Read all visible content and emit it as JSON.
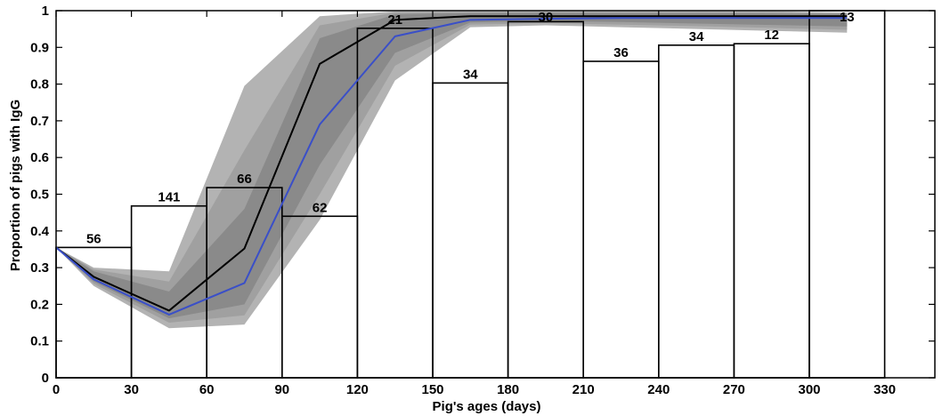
{
  "chart_data": {
    "type": "bar",
    "title": "",
    "xlabel": "Pig's ages (days)",
    "ylabel": "Proportion of pigs with IgG",
    "xlim": [
      0,
      350
    ],
    "ylim": [
      0,
      1
    ],
    "x_ticks": [
      0,
      30,
      60,
      90,
      120,
      150,
      180,
      210,
      240,
      270,
      300,
      330
    ],
    "y_ticks": [
      0,
      0.1,
      0.2,
      0.3,
      0.4,
      0.5,
      0.6,
      0.7,
      0.8,
      0.9,
      1
    ],
    "grid": false,
    "bars": [
      {
        "x0": 0,
        "x1": 30,
        "value": 0.355,
        "label": "56"
      },
      {
        "x0": 30,
        "x1": 60,
        "value": 0.468,
        "label": "141"
      },
      {
        "x0": 60,
        "x1": 90,
        "value": 0.518,
        "label": "66"
      },
      {
        "x0": 90,
        "x1": 120,
        "value": 0.44,
        "label": "62"
      },
      {
        "x0": 120,
        "x1": 150,
        "value": 0.952,
        "label": "21"
      },
      {
        "x0": 150,
        "x1": 180,
        "value": 0.803,
        "label": "34"
      },
      {
        "x0": 180,
        "x1": 210,
        "value": 0.97,
        "label": "30"
      },
      {
        "x0": 210,
        "x1": 240,
        "value": 0.862,
        "label": "36"
      },
      {
        "x0": 240,
        "x1": 270,
        "value": 0.906,
        "label": "34"
      },
      {
        "x0": 270,
        "x1": 300,
        "value": 0.91,
        "label": "12"
      },
      {
        "x0": 300,
        "x1": 330,
        "value": 1.0,
        "label": "13"
      }
    ],
    "series": [
      {
        "type": "line",
        "color": "#000000",
        "x": [
          0,
          15,
          45,
          75,
          105,
          135,
          165,
          195,
          225,
          255,
          285,
          315
        ],
        "y": [
          0.355,
          0.275,
          0.183,
          0.352,
          0.855,
          0.975,
          0.985,
          0.985,
          0.985,
          0.985,
          0.985,
          0.985
        ]
      },
      {
        "type": "line",
        "color": "#3a4fc8",
        "x": [
          0,
          15,
          45,
          75,
          105,
          135,
          165,
          195,
          225,
          255,
          285,
          315
        ],
        "y": [
          0.355,
          0.268,
          0.172,
          0.258,
          0.69,
          0.93,
          0.975,
          0.978,
          0.98,
          0.98,
          0.98,
          0.98
        ]
      }
    ],
    "bands": [
      {
        "color": "#b3b3b3",
        "x": [
          0,
          15,
          45,
          75,
          105,
          135,
          165,
          195,
          225,
          255,
          285,
          315
        ],
        "lower": [
          0.355,
          0.25,
          0.135,
          0.145,
          0.43,
          0.81,
          0.955,
          0.96,
          0.955,
          0.95,
          0.945,
          0.94
        ],
        "upper": [
          0.355,
          0.3,
          0.29,
          0.795,
          0.985,
          0.998,
          0.998,
          0.998,
          0.998,
          0.998,
          0.998,
          0.995
        ]
      },
      {
        "color": "#a0a0a0",
        "x": [
          0,
          15,
          45,
          75,
          105,
          135,
          165,
          195,
          225,
          255,
          285,
          315
        ],
        "lower": [
          0.355,
          0.256,
          0.15,
          0.17,
          0.5,
          0.85,
          0.962,
          0.966,
          0.962,
          0.958,
          0.953,
          0.948
        ],
        "upper": [
          0.355,
          0.295,
          0.262,
          0.62,
          0.96,
          0.995,
          0.996,
          0.996,
          0.996,
          0.996,
          0.995,
          0.993
        ]
      },
      {
        "color": "#8a8a8a",
        "x": [
          0,
          15,
          45,
          75,
          105,
          135,
          165,
          195,
          225,
          255,
          285,
          315
        ],
        "lower": [
          0.355,
          0.262,
          0.162,
          0.2,
          0.58,
          0.885,
          0.968,
          0.972,
          0.969,
          0.965,
          0.961,
          0.957
        ],
        "upper": [
          0.355,
          0.29,
          0.235,
          0.46,
          0.925,
          0.99,
          0.993,
          0.994,
          0.993,
          0.993,
          0.992,
          0.99
        ]
      }
    ]
  }
}
